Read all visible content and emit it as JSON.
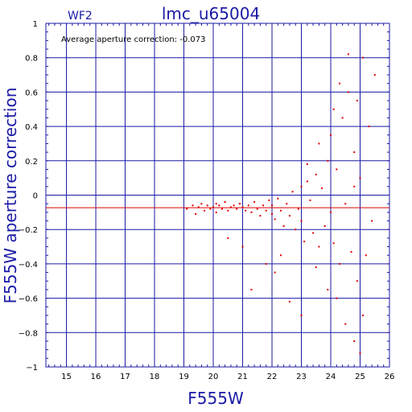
{
  "chart_data": {
    "type": "scatter",
    "title": "lmc_u65004",
    "chip_label": "WF2",
    "annotation": "Average aperture correction:  -0.073",
    "xlabel": "F555W",
    "ylabel": "F555W aperture correction",
    "xlim": [
      14.3,
      26
    ],
    "ylim": [
      -1,
      1
    ],
    "x_ticks": [
      15,
      16,
      17,
      18,
      19,
      20,
      21,
      22,
      23,
      24,
      25,
      26
    ],
    "y_ticks": [
      -1,
      -0.8,
      -0.6,
      -0.4,
      -0.2,
      0,
      0.2,
      0.4,
      0.6,
      0.8,
      1
    ],
    "x_tick_labels": [
      "15",
      "16",
      "17",
      "18",
      "19",
      "20",
      "21",
      "22",
      "23",
      "24",
      "25",
      "26"
    ],
    "y_tick_labels": [
      "−1",
      "−0.8",
      "−0.6",
      "−0.4",
      "−0.2",
      "0",
      "0.2",
      "0.4",
      "0.6",
      "0.8",
      "1"
    ],
    "grid": true,
    "average_line": -0.073,
    "series": [
      {
        "color": "#e00000",
        "points": [
          [
            19.1,
            -0.08
          ],
          [
            19.3,
            -0.06
          ],
          [
            19.4,
            -0.11
          ],
          [
            19.5,
            -0.07
          ],
          [
            19.6,
            -0.05
          ],
          [
            19.7,
            -0.09
          ],
          [
            19.8,
            -0.06
          ],
          [
            19.9,
            -0.08
          ],
          [
            20.0,
            -0.07
          ],
          [
            20.1,
            -0.05
          ],
          [
            20.1,
            -0.1
          ],
          [
            20.2,
            -0.06
          ],
          [
            20.3,
            -0.08
          ],
          [
            20.4,
            -0.04
          ],
          [
            20.5,
            -0.09
          ],
          [
            20.6,
            -0.07
          ],
          [
            20.7,
            -0.06
          ],
          [
            20.8,
            -0.08
          ],
          [
            20.9,
            -0.05
          ],
          [
            21.0,
            -0.07
          ],
          [
            21.1,
            -0.09
          ],
          [
            21.2,
            -0.06
          ],
          [
            21.3,
            -0.1
          ],
          [
            21.4,
            -0.04
          ],
          [
            21.5,
            -0.08
          ],
          [
            21.6,
            -0.12
          ],
          [
            21.7,
            -0.06
          ],
          [
            21.8,
            -0.09
          ],
          [
            21.9,
            -0.03
          ],
          [
            22.0,
            -0.11
          ],
          [
            22.0,
            -0.06
          ],
          [
            22.1,
            -0.14
          ],
          [
            22.2,
            -0.02
          ],
          [
            22.3,
            -0.09
          ],
          [
            22.4,
            -0.18
          ],
          [
            22.5,
            -0.05
          ],
          [
            22.6,
            -0.12
          ],
          [
            22.7,
            0.02
          ],
          [
            22.8,
            -0.2
          ],
          [
            22.9,
            -0.08
          ],
          [
            23.0,
            0.05
          ],
          [
            23.0,
            -0.15
          ],
          [
            23.1,
            -0.27
          ],
          [
            23.2,
            0.08
          ],
          [
            23.3,
            -0.03
          ],
          [
            23.4,
            -0.22
          ],
          [
            23.5,
            0.12
          ],
          [
            23.6,
            -0.3
          ],
          [
            23.7,
            0.04
          ],
          [
            23.8,
            -0.18
          ],
          [
            23.9,
            0.2
          ],
          [
            24.0,
            -0.1
          ],
          [
            24.0,
            0.35
          ],
          [
            24.1,
            -0.28
          ],
          [
            24.2,
            0.15
          ],
          [
            24.3,
            -0.4
          ],
          [
            24.4,
            0.45
          ],
          [
            24.5,
            -0.05
          ],
          [
            24.6,
            0.6
          ],
          [
            24.7,
            -0.33
          ],
          [
            24.8,
            0.25
          ],
          [
            24.9,
            -0.5
          ],
          [
            25.0,
            0.1
          ],
          [
            25.1,
            0.8
          ],
          [
            25.2,
            -0.35
          ],
          [
            25.3,
            0.4
          ],
          [
            25.4,
            -0.15
          ],
          [
            25.5,
            0.7
          ],
          [
            25.1,
            -0.7
          ],
          [
            24.9,
            0.55
          ],
          [
            20.5,
            -0.25
          ],
          [
            21.0,
            -0.3
          ],
          [
            21.3,
            -0.55
          ],
          [
            21.8,
            -0.4
          ],
          [
            22.1,
            -0.45
          ],
          [
            22.3,
            -0.35
          ],
          [
            22.6,
            -0.62
          ],
          [
            23.0,
            -0.7
          ],
          [
            23.5,
            -0.42
          ],
          [
            23.9,
            -0.55
          ],
          [
            24.2,
            -0.6
          ],
          [
            24.5,
            -0.75
          ],
          [
            24.8,
            -0.85
          ],
          [
            25.0,
            -0.92
          ],
          [
            24.1,
            0.5
          ],
          [
            24.3,
            0.65
          ],
          [
            24.6,
            0.82
          ],
          [
            23.6,
            0.3
          ],
          [
            23.2,
            0.18
          ],
          [
            24.8,
            0.05
          ]
        ]
      }
    ]
  }
}
